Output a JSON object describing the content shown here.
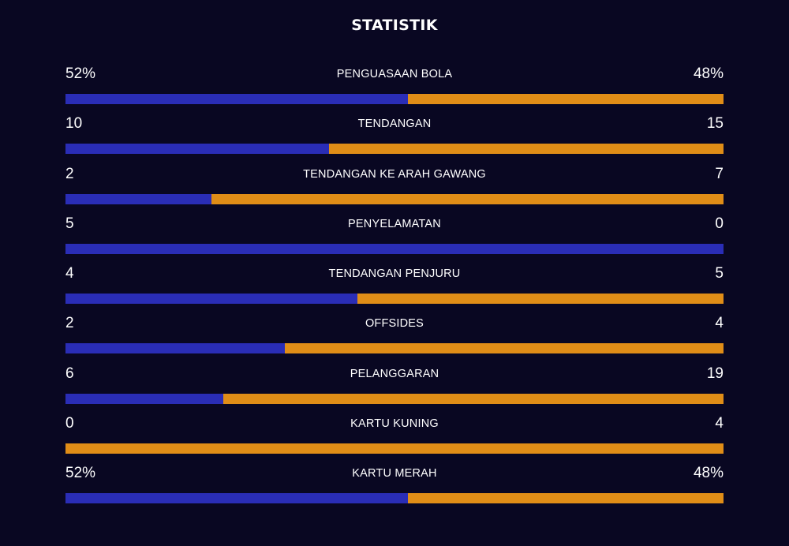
{
  "title": "STATISTIK",
  "colors": {
    "background": "#090722",
    "home": "#2a2db6",
    "away": "#e08d17",
    "text": "#ffffff"
  },
  "stats": [
    {
      "label": "PENGUASAAN BOLA",
      "home": "52%",
      "away": "48%",
      "home_share": 0.52
    },
    {
      "label": "TENDANGAN",
      "home": "10",
      "away": "15",
      "home_share": 0.4
    },
    {
      "label": "TENDANGAN KE ARAH GAWANG",
      "home": "2",
      "away": "7",
      "home_share": 0.222
    },
    {
      "label": "PENYELAMATAN",
      "home": "5",
      "away": "0",
      "home_share": 1.0
    },
    {
      "label": "TENDANGAN PENJURU",
      "home": "4",
      "away": "5",
      "home_share": 0.444
    },
    {
      "label": "OFFSIDES",
      "home": "2",
      "away": "4",
      "home_share": 0.333
    },
    {
      "label": "PELANGGARAN",
      "home": "6",
      "away": "19",
      "home_share": 0.24
    },
    {
      "label": "KARTU KUNING",
      "home": "0",
      "away": "4",
      "home_share": 0.0
    },
    {
      "label": "KARTU MERAH",
      "home": "52%",
      "away": "48%",
      "home_share": 0.52
    }
  ]
}
